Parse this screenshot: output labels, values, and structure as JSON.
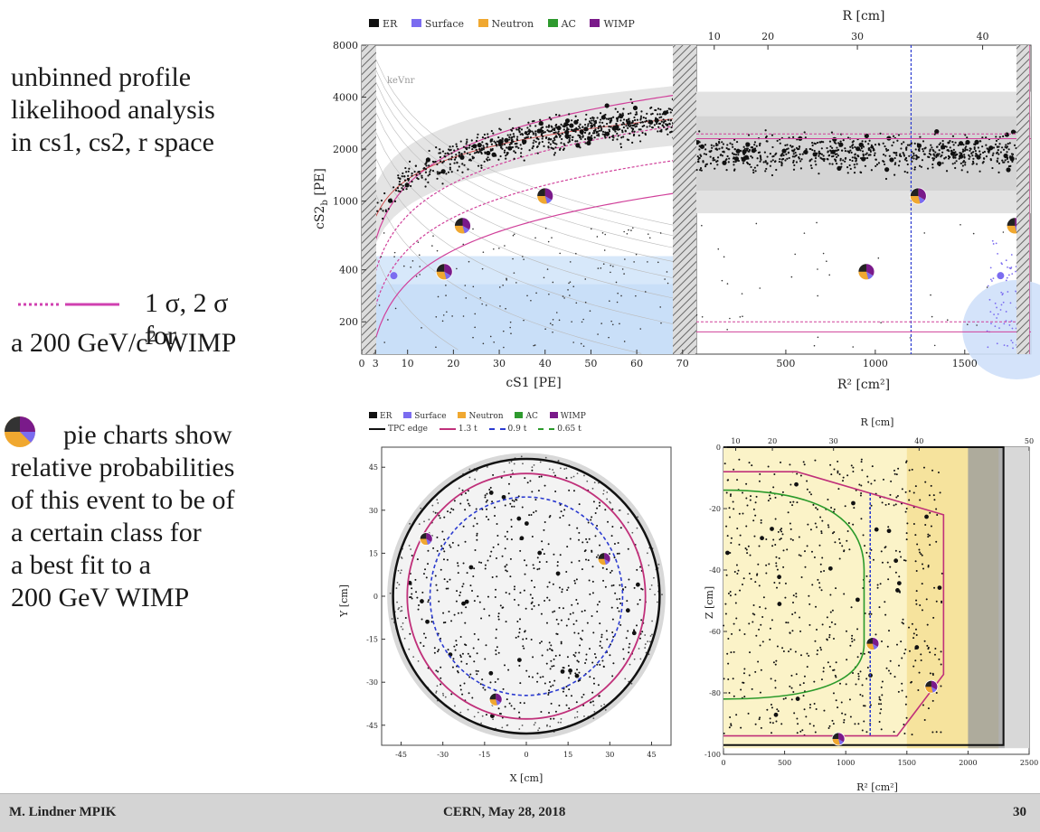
{
  "slide": {
    "text_block_1": [
      "unbinned profile",
      "likelihood analysis",
      "in cs1, cs2, r space"
    ],
    "legend_line_text": "1 σ, 2 σ for",
    "legend_line_text2_a": "a 200 GeV/c",
    "legend_line_text2_sup": "2",
    "legend_line_text2_b": " WIMP",
    "pie_text_first": "pie charts show",
    "pie_text_rest": [
      "relative probabilities",
      "of this event to be of",
      "a certain class for",
      "a best fit to a",
      "200 GeV WIMP"
    ],
    "footer": {
      "author": "M. Lindner MPIK",
      "event": "CERN, May 28, 2018",
      "page": "30"
    }
  },
  "colors": {
    "er": "#111111",
    "surface": "#7b6cf0",
    "neutron": "#f0a830",
    "ac": "#2e9a2e",
    "wimp": "#7a1a8a",
    "contour": "#d0409a",
    "tpc": "#111111",
    "fv13": "#c0307a",
    "fv09": "#2a3ad0",
    "fv065": "#2a9a2a"
  },
  "chart_data": [
    {
      "type": "scatter",
      "panel": "cs1-cs2b",
      "xlabel": "cS1 [PE]",
      "ylabel": "cS2_b [PE]",
      "ylabel_main": "cS2",
      "ylabel_sub": "b",
      "ylabel_unit": " [PE]",
      "x_ticks": [
        "0",
        "3",
        "10",
        "20",
        "30",
        "40",
        "50",
        "60",
        "70"
      ],
      "y_ticks": [
        "200",
        "400",
        "1000",
        "2000",
        "4000",
        "8000"
      ],
      "y_scale": "log",
      "xlim": [
        0,
        73
      ],
      "ylim": [
        130,
        8000
      ],
      "legend": [
        "ER",
        "Surface",
        "Neutron",
        "AC",
        "WIMP"
      ],
      "annotation": "keVnr",
      "pies": [
        {
          "x": 40,
          "y": 1070
        },
        {
          "x": 22,
          "y": 720
        },
        {
          "x": 18,
          "y": 390
        }
      ]
    },
    {
      "type": "scatter",
      "panel": "r2-cs2b",
      "xlabel": "R² [cm²]",
      "xlabel_top": "R [cm]",
      "x_ticks": [
        "500",
        "1000",
        "1500"
      ],
      "x_ticks_top": [
        "10",
        "20",
        "30",
        "40"
      ],
      "xlim": [
        0,
        1870
      ],
      "ylim": [
        130,
        8000
      ],
      "pies": [
        {
          "x": 1240,
          "y": 1070
        },
        {
          "x": 1780,
          "y": 720
        },
        {
          "x": 950,
          "y": 390
        }
      ]
    },
    {
      "type": "scatter",
      "panel": "x-y",
      "xlabel": "X [cm]",
      "ylabel": "Y [cm]",
      "ticks": [
        "-45",
        "-30",
        "-15",
        "0",
        "15",
        "30",
        "45"
      ],
      "xlim": [
        -52,
        52
      ],
      "ylim": [
        -52,
        52
      ],
      "legend": [
        "ER",
        "Surface",
        "Neutron",
        "AC",
        "WIMP",
        "TPC edge",
        "1.3 t",
        "0.9 t",
        "0.65 t"
      ],
      "pies": [
        {
          "x": -36,
          "y": 20
        },
        {
          "x": 28,
          "y": 13
        },
        {
          "x": -11,
          "y": -36
        }
      ]
    },
    {
      "type": "scatter",
      "panel": "r2-z",
      "xlabel": "R² [cm²]",
      "xlabel_top": "R [cm]",
      "ylabel": "Z [cm]",
      "x_ticks": [
        "0",
        "500",
        "1000",
        "1500",
        "2000",
        "2500"
      ],
      "x_ticks_top": [
        "10",
        "20",
        "30",
        "40",
        "50"
      ],
      "y_ticks": [
        "0",
        "-20",
        "-40",
        "-60",
        "-80",
        "-100"
      ],
      "xlim": [
        0,
        2500
      ],
      "ylim": [
        -100,
        0
      ],
      "pies": [
        {
          "x": 1220,
          "y": -64
        },
        {
          "x": 1700,
          "y": -78
        },
        {
          "x": 940,
          "y": -95
        }
      ]
    }
  ]
}
